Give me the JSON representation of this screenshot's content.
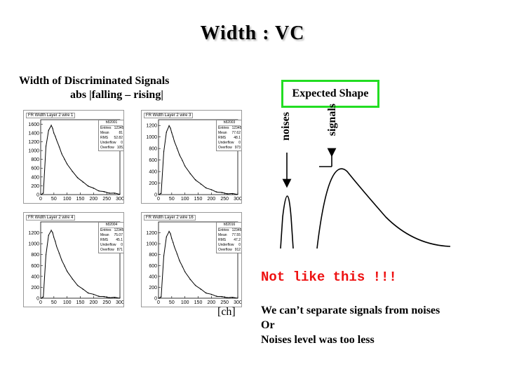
{
  "slide": {
    "title": "Width : VC",
    "subtitle_line1": "Width of Discriminated Signals",
    "subtitle_line2": "abs |falling – rising|",
    "expected_label": "Expected Shape",
    "highlight_color": "#22dd22",
    "noises_label": "noises",
    "signals_label": "signals",
    "warning": "Not like this !!!",
    "warning_color": "#ee1111",
    "ch_label": "[ch]",
    "note_lines": [
      "We can’t separate signals from noises",
      "Or",
      "Noises level was too less"
    ]
  },
  "chart_data": [
    {
      "type": "line",
      "title": "FR Width Layer 2 wire 1",
      "stats": {
        "name": "h82001",
        "rows": [
          [
            "Entries",
            "123456"
          ],
          [
            "Mean",
            "81"
          ],
          [
            "RMS",
            "52.82"
          ],
          [
            "Underflow",
            "0"
          ],
          [
            "Overflow",
            "1052"
          ]
        ]
      },
      "x": [
        0,
        10,
        20,
        30,
        40,
        45,
        50,
        55,
        60,
        70,
        80,
        90,
        100,
        120,
        140,
        160,
        180,
        200,
        220,
        240,
        260,
        280,
        300
      ],
      "y": [
        0,
        30,
        1100,
        1450,
        1580,
        1500,
        1400,
        1320,
        1250,
        1080,
        930,
        800,
        700,
        520,
        390,
        280,
        200,
        140,
        90,
        60,
        40,
        25,
        15
      ],
      "xlim": [
        0,
        300
      ],
      "ylim": [
        0,
        1700
      ],
      "xticks": [
        0,
        50,
        100,
        150,
        200,
        250,
        300
      ],
      "yticks": [
        0,
        200,
        400,
        600,
        800,
        1000,
        1200,
        1400,
        1600
      ]
    },
    {
      "type": "line",
      "title": "FR Width Layer 2 wire 3",
      "stats": {
        "name": "h82003",
        "rows": [
          [
            "Entries",
            "123456"
          ],
          [
            "Mean",
            "77.62"
          ],
          [
            "RMS",
            "48.1"
          ],
          [
            "Underflow",
            "0"
          ],
          [
            "Overflow",
            "973"
          ]
        ]
      },
      "x": [
        0,
        10,
        20,
        30,
        40,
        45,
        50,
        55,
        60,
        70,
        80,
        90,
        100,
        120,
        140,
        160,
        180,
        200,
        220,
        240,
        260,
        280,
        300
      ],
      "y": [
        0,
        20,
        750,
        1080,
        1200,
        1150,
        1080,
        1000,
        930,
        800,
        690,
        590,
        500,
        360,
        260,
        180,
        120,
        80,
        50,
        30,
        20,
        12,
        8
      ],
      "xlim": [
        0,
        300
      ],
      "ylim": [
        0,
        1300
      ],
      "xticks": [
        0,
        50,
        100,
        150,
        200,
        250,
        300
      ],
      "yticks": [
        0,
        200,
        400,
        600,
        800,
        1000,
        1200
      ]
    },
    {
      "type": "line",
      "title": "FR Width Layer 2 wire 4",
      "stats": {
        "name": "h82004",
        "rows": [
          [
            "Entries",
            "123456"
          ],
          [
            "Mean",
            "75.07"
          ],
          [
            "RMS",
            "45.1"
          ],
          [
            "Underflow",
            "0"
          ],
          [
            "Overflow",
            "871"
          ]
        ]
      },
      "x": [
        0,
        10,
        20,
        30,
        40,
        45,
        50,
        55,
        60,
        70,
        80,
        90,
        100,
        120,
        140,
        160,
        180,
        200,
        220,
        240,
        260,
        280,
        300
      ],
      "y": [
        0,
        20,
        800,
        1150,
        1250,
        1200,
        1120,
        1040,
        960,
        820,
        700,
        590,
        500,
        350,
        240,
        160,
        100,
        65,
        40,
        25,
        15,
        10,
        6
      ],
      "xlim": [
        0,
        300
      ],
      "ylim": [
        0,
        1400
      ],
      "xticks": [
        0,
        50,
        100,
        150,
        200,
        250,
        300
      ],
      "yticks": [
        0,
        200,
        400,
        600,
        800,
        1000,
        1200
      ]
    },
    {
      "type": "line",
      "title": "FR Width Layer 2 wire 16",
      "stats": {
        "name": "h82016",
        "rows": [
          [
            "Entries",
            "123456"
          ],
          [
            "Mean",
            "77.55"
          ],
          [
            "RMS",
            "47.2"
          ],
          [
            "Underflow",
            "0"
          ],
          [
            "Overflow",
            "912"
          ]
        ]
      },
      "x": [
        0,
        10,
        20,
        30,
        40,
        45,
        50,
        55,
        60,
        70,
        80,
        90,
        100,
        120,
        140,
        160,
        180,
        200,
        220,
        240,
        260,
        280,
        300
      ],
      "y": [
        0,
        20,
        780,
        1120,
        1230,
        1180,
        1100,
        1020,
        950,
        810,
        690,
        580,
        490,
        340,
        240,
        160,
        100,
        65,
        40,
        25,
        15,
        10,
        6
      ],
      "xlim": [
        0,
        300
      ],
      "ylim": [
        0,
        1400
      ],
      "xticks": [
        0,
        50,
        100,
        150,
        200,
        250,
        300
      ],
      "yticks": [
        0,
        200,
        400,
        600,
        800,
        1000,
        1200
      ]
    }
  ]
}
